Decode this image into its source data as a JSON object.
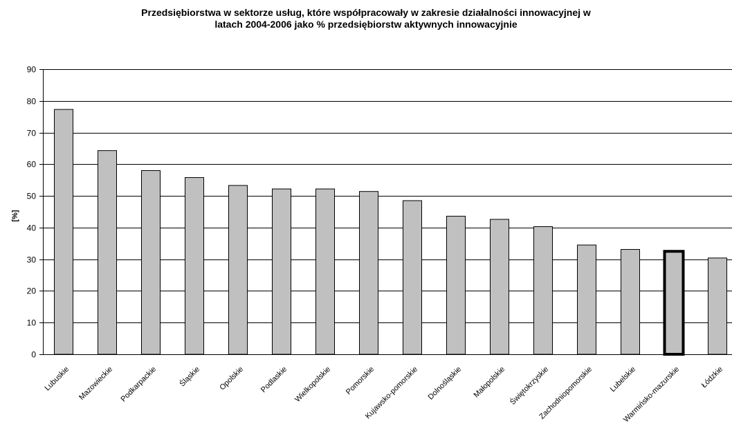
{
  "chart_data": {
    "type": "bar",
    "title_lines": [
      "Przedsiębiorstwa w sektorze usług, które współpracowały w zakresie działalności innowacyjnej w",
      "latach 2004-2006 jako % przedsiębiorstw aktywnych innowacyjnie"
    ],
    "xlabel": "",
    "ylabel": "[%]",
    "ylim": [
      0,
      90
    ],
    "yticks": [
      0,
      10,
      20,
      30,
      40,
      50,
      60,
      70,
      80,
      90
    ],
    "grid": true,
    "legend": "none",
    "categories": [
      "Lubuskie",
      "Mazowieckie",
      "Podkarpackie",
      "Śląskie",
      "Opolskie",
      "Podlaskie",
      "Wielkopolskie",
      "Pomorskie",
      "Kujawsko-pomorskie",
      "Dolnośląskie",
      "Małopolskie",
      "Świętokrzyskie",
      "Zachodniopomorskie",
      "Lubelskie",
      "Warmińsko-mazurskie",
      "Łódzkie"
    ],
    "values": [
      77.3,
      64.3,
      58.0,
      55.8,
      53.3,
      52.2,
      52.2,
      51.4,
      48.5,
      43.6,
      42.6,
      40.3,
      34.5,
      33.1,
      32.5,
      30.4
    ],
    "highlighted_category": "Warmińsko-mazurskie",
    "colors": {
      "bar_fill": "#c0c0c0",
      "bar_stroke": "#000000",
      "highlight_stroke": "#000000",
      "grid": "#000000"
    }
  }
}
